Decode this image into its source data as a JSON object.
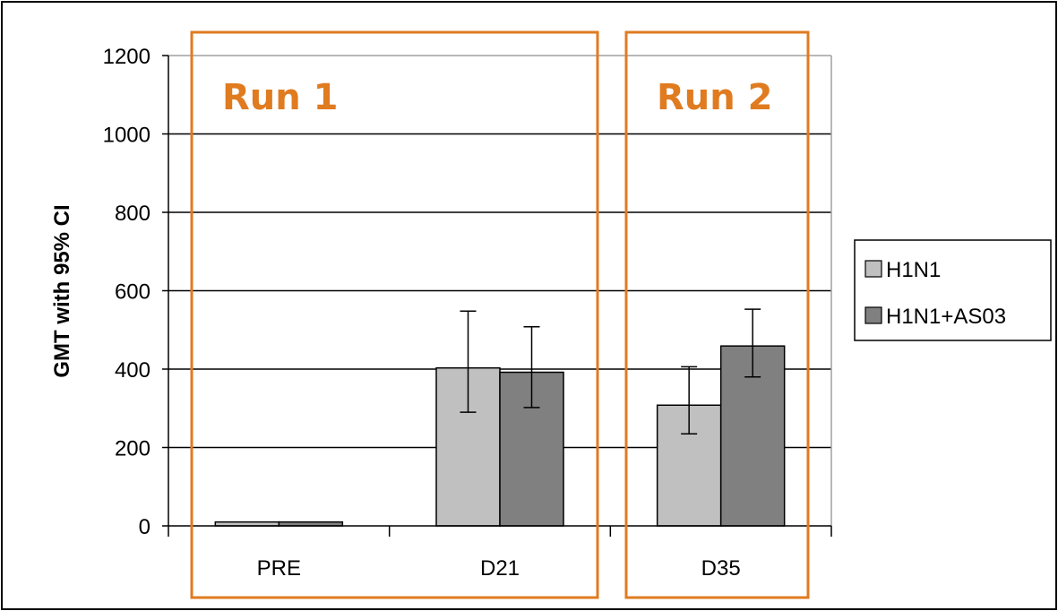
{
  "chart_data": {
    "type": "bar",
    "categories": [
      "PRE",
      "D21",
      "D35"
    ],
    "ylabel": "GMT with 95% CI",
    "xlabel": "",
    "ylim": [
      0,
      1200
    ],
    "yticks": [
      0,
      200,
      400,
      600,
      800,
      1000,
      1200
    ],
    "grid": true,
    "legend_position": "right",
    "series": [
      {
        "name": "H1N1",
        "color": "#c0c0c0",
        "values": [
          10,
          403,
          308
        ],
        "ci_low": [
          8,
          290,
          235
        ],
        "ci_high": [
          12,
          548,
          406
        ]
      },
      {
        "name": "H1N1+AS03",
        "color": "#808080",
        "values": [
          10,
          392,
          459
        ],
        "ci_low": [
          8,
          302,
          380
        ],
        "ci_high": [
          12,
          508,
          553
        ]
      }
    ],
    "annotations": [
      {
        "text": "Run 1",
        "color": "#e07b20",
        "spans": [
          "PRE",
          "D21"
        ]
      },
      {
        "text": "Run 2",
        "color": "#e07b20",
        "spans": [
          "D35"
        ]
      }
    ]
  }
}
